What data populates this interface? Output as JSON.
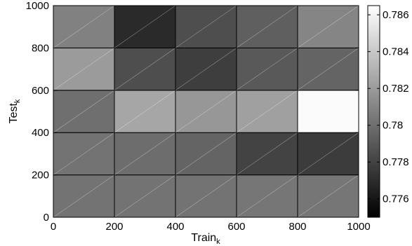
{
  "chart_data": {
    "type": "heatmap",
    "xlabel": "Train",
    "xlabel_subscript": "k",
    "ylabel": "Test",
    "ylabel_subscript": "k",
    "x_edges": [
      0,
      200,
      400,
      600,
      800,
      1000
    ],
    "y_edges": [
      0,
      200,
      400,
      600,
      800,
      1000
    ],
    "xlim": [
      0,
      1000
    ],
    "ylim": [
      0,
      1000
    ],
    "x_ticks": [
      "0",
      "200",
      "400",
      "600",
      "800",
      "1000"
    ],
    "y_ticks": [
      "0",
      "200",
      "400",
      "600",
      "800",
      "1000"
    ],
    "values": [
      [
        0.7802,
        0.7802,
        0.7802,
        0.7803,
        0.7803
      ],
      [
        0.7802,
        0.7799,
        0.7795,
        0.778,
        0.7777
      ],
      [
        0.78,
        0.7825,
        0.7818,
        0.7822,
        0.7863
      ],
      [
        0.782,
        0.7785,
        0.7778,
        0.779,
        0.7795
      ],
      [
        0.7808,
        0.7769,
        0.7785,
        0.7793,
        0.781
      ]
    ],
    "colorbar": {
      "min": 0.775,
      "max": 0.7865,
      "ticks": [
        "0.776",
        "0.778",
        "0.78",
        "0.782",
        "0.784",
        "0.786"
      ],
      "colormap": "gray"
    }
  }
}
